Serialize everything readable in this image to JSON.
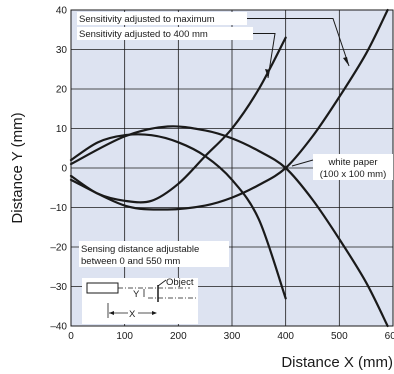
{
  "chart_data": {
    "type": "line",
    "xlabel": "Distance X (mm)",
    "ylabel": "Distance Y (mm)",
    "xlim": [
      0,
      600
    ],
    "ylim": [
      -40,
      40
    ],
    "x_ticks": [
      0,
      100,
      200,
      300,
      400,
      500,
      600
    ],
    "y_ticks": [
      40,
      30,
      20,
      10,
      0,
      -10,
      -20,
      -30,
      -40
    ],
    "grid": true,
    "background": "#dde3f1",
    "line_color": "#1a1a1a",
    "series": [
      {
        "name": "Sensitivity adjusted to 400 mm",
        "curves": [
          [
            [
              0,
              2
            ],
            [
              50,
              6.5
            ],
            [
              100,
              8.3
            ],
            [
              150,
              8.3
            ],
            [
              200,
              6.5
            ],
            [
              250,
              3
            ],
            [
              300,
              -3
            ],
            [
              350,
              -13
            ],
            [
              400,
              -33
            ]
          ],
          [
            [
              0,
              -2
            ],
            [
              50,
              -6.5
            ],
            [
              100,
              -8.3
            ],
            [
              150,
              -8.3
            ],
            [
              200,
              -4
            ],
            [
              250,
              3
            ],
            [
              300,
              10
            ],
            [
              350,
              20
            ],
            [
              400,
              33
            ]
          ]
        ]
      },
      {
        "name": "Sensitivity adjusted to maximum",
        "curves": [
          [
            [
              0,
              1
            ],
            [
              100,
              8
            ],
            [
              180,
              10.5
            ],
            [
              250,
              9.5
            ],
            [
              300,
              7.5
            ],
            [
              350,
              4.3
            ],
            [
              400,
              0
            ],
            [
              450,
              -8
            ],
            [
              500,
              -18
            ],
            [
              550,
              -29
            ],
            [
              590,
              -40
            ]
          ],
          [
            [
              0,
              -3
            ],
            [
              100,
              -9.5
            ],
            [
              180,
              -10.5
            ],
            [
              250,
              -9.5
            ],
            [
              300,
              -7.5
            ],
            [
              350,
              -4.3
            ],
            [
              400,
              0
            ],
            [
              450,
              8
            ],
            [
              500,
              18
            ],
            [
              550,
              29
            ],
            [
              590,
              40
            ]
          ]
        ]
      }
    ],
    "annotations": {
      "max_label": "Sensitivity adjusted to maximum",
      "s400_label": "Sensitivity adjusted to 400 mm",
      "white_paper_1": "white paper",
      "white_paper_2": "(100 x 100 mm)",
      "range_1": "Sensing distance adjustable",
      "range_2": "between  0 and 550 mm",
      "object_label": "Object",
      "y_symbol": "Y",
      "x_symbol": "X"
    }
  }
}
